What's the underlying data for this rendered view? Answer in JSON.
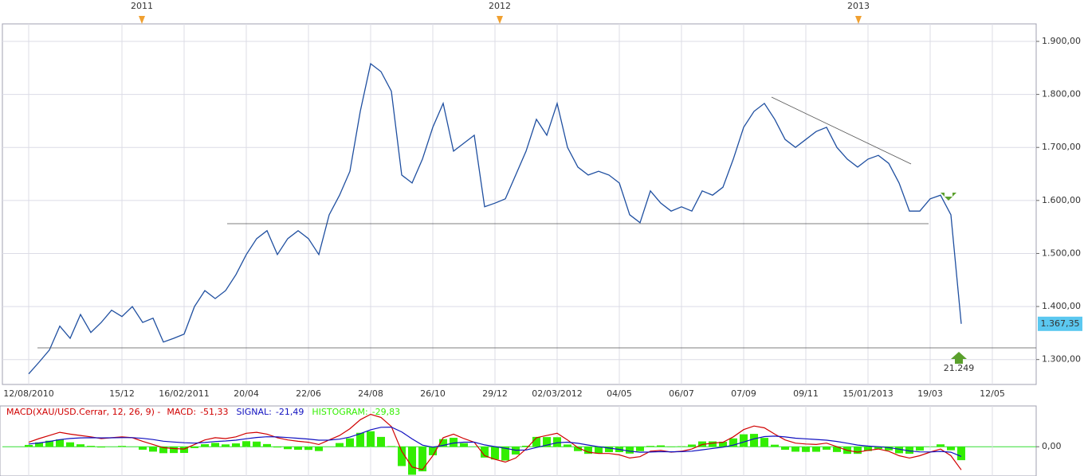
{
  "chart_data": [
    {
      "type": "line",
      "period_labels": [
        "2011",
        "2012",
        "2013"
      ],
      "categories": [
        "12/08/2010",
        null,
        null,
        null,
        null,
        null,
        null,
        null,
        null,
        "15/12",
        null,
        null,
        null,
        null,
        null,
        "16/02/2011",
        null,
        null,
        null,
        null,
        null,
        "20/04",
        null,
        null,
        null,
        null,
        null,
        "22/06",
        null,
        null,
        null,
        null,
        null,
        "24/08",
        null,
        null,
        null,
        null,
        null,
        "26/10",
        null,
        null,
        null,
        null,
        null,
        "29/12",
        null,
        null,
        null,
        null,
        null,
        "02/03/2012",
        null,
        null,
        null,
        null,
        null,
        "04/05",
        null,
        null,
        null,
        null,
        null,
        "06/07",
        null,
        null,
        null,
        null,
        null,
        "07/09",
        null,
        null,
        null,
        null,
        null,
        "09/11",
        null,
        null,
        null,
        null,
        null,
        "15/01/2013",
        null,
        null,
        null,
        null,
        null,
        "19/03",
        null,
        null,
        null,
        null,
        null,
        "12/05"
      ],
      "values": [
        1273,
        1295,
        1318,
        1363,
        1340,
        1385,
        1351,
        1370,
        1393,
        1381,
        1400,
        1370,
        1378,
        1333,
        1340,
        1348,
        1400,
        1430,
        1415,
        1430,
        1460,
        1498,
        1528,
        1543,
        1498,
        1528,
        1543,
        1528,
        1498,
        1573,
        1610,
        1655,
        1768,
        1858,
        1843,
        1806,
        1648,
        1633,
        1678,
        1738,
        1783,
        1693,
        1708,
        1723,
        1588,
        1595,
        1603,
        1648,
        1693,
        1753,
        1723,
        1783,
        1700,
        1663,
        1648,
        1655,
        1648,
        1633,
        1573,
        1558,
        1618,
        1595,
        1580,
        1588,
        1580,
        1618,
        1610,
        1625,
        1678,
        1738,
        1768,
        1783,
        1753,
        1715,
        1700,
        1715,
        1730,
        1738,
        1700,
        1678,
        1663,
        1678,
        1685,
        1670,
        1633,
        1580,
        1580,
        1603,
        1610,
        1573,
        1367.35,
        null,
        null,
        null
      ],
      "value_labels": [
        null,
        null,
        null,
        null,
        null,
        null,
        null,
        null,
        null,
        null,
        null,
        null,
        null,
        null,
        null,
        null,
        null,
        null,
        null,
        null,
        null,
        null,
        null,
        null,
        null,
        null,
        null,
        null,
        null,
        null,
        null,
        null,
        null,
        null,
        null,
        null,
        null,
        null,
        null,
        null,
        null,
        null,
        null,
        null,
        null,
        null,
        null,
        null,
        null,
        null,
        null,
        null,
        null,
        null,
        null,
        null,
        null,
        null,
        null,
        null,
        null,
        null,
        null,
        null,
        null,
        null,
        null,
        null,
        null,
        null,
        null,
        null,
        null,
        null,
        null,
        null,
        null,
        null,
        null,
        null,
        null,
        null,
        null,
        null,
        null,
        null,
        null,
        null,
        null,
        null,
        "1.367,35",
        null,
        null,
        null
      ],
      "color": "#1f4fa0",
      "ylim": [
        1253,
        1933
      ],
      "yticks": [
        {
          "value": 1300,
          "label": "1.300,00"
        },
        {
          "value": 1400,
          "label": "1.400,00"
        },
        {
          "value": 1500,
          "label": "1.500,00"
        },
        {
          "value": 1600,
          "label": "1.600,00"
        },
        {
          "value": 1700,
          "label": "1.700,00"
        },
        {
          "value": 1800,
          "label": "1.800,00"
        },
        {
          "value": 1900,
          "label": "1.900,00"
        }
      ],
      "grid": true,
      "annotations": [
        "21.249"
      ]
    },
    {
      "type": "line",
      "title": "MACD(XAU/USD.Cerrar, 12, 26, 9) -",
      "ylim": [
        -65,
        87
      ],
      "yticks": [
        {
          "value": 0,
          "label": "0,00"
        }
      ],
      "series": [
        {
          "name": "MACD:",
          "color": "#d00000",
          "values": [
            10,
            18,
            25,
            32,
            28,
            25,
            22,
            18,
            20,
            22,
            20,
            12,
            5,
            -2,
            -4,
            -5,
            5,
            15,
            20,
            18,
            22,
            30,
            32,
            28,
            20,
            15,
            12,
            10,
            5,
            15,
            25,
            40,
            60,
            72,
            65,
            45,
            -10,
            -45,
            -51,
            -20,
            20,
            28,
            18,
            10,
            -20,
            -28,
            -34,
            -25,
            -5,
            20,
            25,
            30,
            15,
            -2,
            -12,
            -15,
            -15,
            -18,
            -25,
            -22,
            -10,
            -8,
            -12,
            -10,
            -5,
            5,
            8,
            10,
            22,
            38,
            46,
            42,
            28,
            15,
            8,
            6,
            5,
            8,
            0,
            -8,
            -12,
            -8,
            -5,
            -10,
            -20,
            -25,
            -20,
            -12,
            -5,
            -20,
            -51.33,
            null,
            null,
            null
          ],
          "value_labels": [
            null,
            null,
            null,
            null,
            null,
            null,
            null,
            null,
            null,
            null,
            null,
            null,
            null,
            null,
            null,
            null,
            null,
            null,
            null,
            null,
            null,
            null,
            null,
            null,
            null,
            null,
            null,
            null,
            null,
            null,
            null,
            null,
            null,
            null,
            null,
            null,
            null,
            null,
            null,
            null,
            null,
            null,
            null,
            null,
            null,
            null,
            null,
            null,
            null,
            null,
            null,
            null,
            null,
            null,
            null,
            null,
            null,
            null,
            null,
            null,
            null,
            null,
            null,
            null,
            null,
            null,
            null,
            null,
            null,
            null,
            null,
            null,
            null,
            null,
            null,
            null,
            null,
            null,
            null,
            null,
            null,
            null,
            null,
            null,
            null,
            null,
            null,
            null,
            null,
            null,
            "-51,33",
            null,
            null,
            null
          ]
        },
        {
          "name": "SIGNAL:",
          "color": "#1010c0",
          "values": [
            6,
            8.4,
            11.7,
            15.8,
            18.2,
            19.6,
            20.1,
            19.7,
            19.8,
            20.2,
            20.2,
            18.6,
            15.9,
            12.3,
            10.5,
            8.8,
            8.0,
            9.4,
            11.5,
            12.8,
            14.6,
            17.7,
            20.6,
            22.1,
            21.7,
            20.4,
            18.7,
            17.0,
            14.6,
            14.7,
            16.8,
            21.4,
            29.1,
            37.7,
            43.2,
            43.6,
            32.9,
            17.3,
            3.6,
            -1.1,
            3.1,
            8.1,
            10.1,
            10.1,
            4.1,
            0.3,
            -3.5,
            -7.8,
            -7.2,
            -1.8,
            3.6,
            8.9,
            10.1,
            7.7,
            3.8,
            0,
            -3.0,
            -6.0,
            -9.8,
            -12.2,
            -11.8,
            -11.0,
            -11.2,
            -11.0,
            -9.8,
            -6.8,
            -3.9,
            -1.1,
            3.5,
            10.4,
            17.5,
            22.4,
            23.5,
            21.8,
            19.0,
            17.6,
            16.2,
            14.6,
            11.7,
            7.8,
            3.8,
            1.4,
            0.1,
            -1.9,
            -5.5,
            -9.4,
            -11.5,
            -11.6,
            -10.3,
            -12.2,
            -21.49,
            null,
            null,
            null
          ],
          "value_labels": [
            null,
            null,
            null,
            null,
            null,
            null,
            null,
            null,
            null,
            null,
            null,
            null,
            null,
            null,
            null,
            null,
            null,
            null,
            null,
            null,
            null,
            null,
            null,
            null,
            null,
            null,
            null,
            null,
            null,
            null,
            null,
            null,
            null,
            null,
            null,
            null,
            null,
            null,
            null,
            null,
            null,
            null,
            null,
            null,
            null,
            null,
            null,
            null,
            null,
            null,
            null,
            null,
            null,
            null,
            null,
            null,
            null,
            null,
            null,
            null,
            null,
            null,
            null,
            null,
            null,
            null,
            null,
            null,
            null,
            null,
            null,
            null,
            null,
            null,
            null,
            null,
            null,
            null,
            null,
            null,
            null,
            null,
            null,
            null,
            null,
            null,
            null,
            null,
            null,
            null,
            "-21,49",
            null,
            null,
            null
          ]
        },
        {
          "name": "HISTOGRAM:",
          "color": "#33ee00",
          "type": "bar",
          "values": [
            4,
            9.6,
            13.3,
            16.2,
            9.8,
            5.4,
            1.9,
            -1.7,
            0.2,
            1.8,
            -0.2,
            -6.6,
            -10.9,
            -14.3,
            -14,
            -13.8,
            -3.0,
            5.6,
            8.5,
            5.2,
            7.4,
            12.3,
            11.4,
            5.9,
            -1.7,
            -5.4,
            -6.7,
            -7.0,
            -9.6,
            0.3,
            8.2,
            18.6,
            30.9,
            34.3,
            21.8,
            1.4,
            -42.9,
            -62.3,
            -54.6,
            -18.9,
            16.9,
            19.9,
            7.9,
            -0.1,
            -24.1,
            -28.3,
            -30.5,
            -17.2,
            2.2,
            21.8,
            21.4,
            21.1,
            4.9,
            -9.7,
            -15.8,
            -15.0,
            -12.0,
            -12.0,
            -15.2,
            -9.8,
            1.8,
            3.0,
            -0.8,
            1.0,
            4.8,
            11.8,
            11.9,
            11.1,
            18.5,
            27.6,
            28.5,
            19.6,
            4.5,
            -6.8,
            -11.0,
            -11.6,
            -11.2,
            -6.6,
            -11.7,
            -15.8,
            -15.8,
            -9.4,
            -5.1,
            -8.1,
            -14.5,
            -15.6,
            -8.5,
            -0.4,
            5.3,
            -7.8,
            -29.83,
            null,
            null,
            null
          ],
          "value_labels": [
            null,
            null,
            null,
            null,
            null,
            null,
            null,
            null,
            null,
            null,
            null,
            null,
            null,
            null,
            null,
            null,
            null,
            null,
            null,
            null,
            null,
            null,
            null,
            null,
            null,
            null,
            null,
            null,
            null,
            null,
            null,
            null,
            null,
            null,
            null,
            null,
            null,
            null,
            null,
            null,
            null,
            null,
            null,
            null,
            null,
            null,
            null,
            null,
            null,
            null,
            null,
            null,
            null,
            null,
            null,
            null,
            null,
            null,
            null,
            null,
            null,
            null,
            null,
            null,
            null,
            null,
            null,
            null,
            null,
            null,
            null,
            null,
            null,
            null,
            null,
            null,
            null,
            null,
            null,
            null,
            null,
            null,
            null,
            null,
            null,
            null,
            null,
            null,
            null,
            null,
            "-29,83",
            null,
            null,
            null
          ]
        }
      ]
    }
  ]
}
